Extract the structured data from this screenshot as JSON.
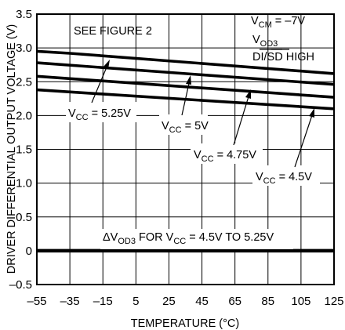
{
  "chart_data": {
    "type": "line",
    "xlabel": "TEMPERATURE (°C)",
    "ylabel": "DRIVER DIFFERENTIAL OUTPUT VOLTAGE (V)",
    "xlim": [
      -55,
      125
    ],
    "ylim": [
      -0.5,
      3.5
    ],
    "x_ticks": [
      "–55",
      "–35",
      "–15",
      "5",
      "25",
      "45",
      "65",
      "85",
      "105",
      "125"
    ],
    "y_ticks": [
      "–0.5",
      "0",
      "0.5",
      "1.0",
      "1.5",
      "2.0",
      "2.5",
      "3.0",
      "3.5"
    ],
    "grid": true,
    "series": [
      {
        "name": "VCC = 5.25V",
        "x": [
          -55,
          -35,
          125
        ],
        "y": [
          2.95,
          2.92,
          2.62
        ]
      },
      {
        "name": "VCC = 5V",
        "x": [
          -55,
          125
        ],
        "y": [
          2.78,
          2.46
        ]
      },
      {
        "name": "VCC = 4.75V",
        "x": [
          -55,
          125
        ],
        "y": [
          2.58,
          2.27
        ]
      },
      {
        "name": "VCC = 4.5V",
        "x": [
          -55,
          125
        ],
        "y": [
          2.38,
          2.1
        ]
      },
      {
        "name": "ΔVOD3 FOR VCC = 4.5V TO 5.25V",
        "x": [
          -55,
          125
        ],
        "y": [
          0,
          0
        ]
      }
    ],
    "annotations": {
      "see_figure": "SEE FIGURE 2",
      "vcm": {
        "main": "V",
        "sub": "CM",
        "rest": " = –7V"
      },
      "vod3": {
        "main": "V",
        "sub": "OD3"
      },
      "di_sd": {
        "main": "DI/",
        "over": "SD",
        "rest": " HIGH"
      },
      "label_525": {
        "main": "V",
        "sub": "CC",
        "rest": " = 5.25V"
      },
      "label_5": {
        "main": "V",
        "sub": "CC",
        "rest": " = 5V"
      },
      "label_475": {
        "main": "V",
        "sub": "CC",
        "rest": " = 4.75V"
      },
      "label_45": {
        "main": "V",
        "sub": "CC",
        "rest": " = 4.5V"
      },
      "delta": {
        "a": "ΔV",
        "sub1": "OD3",
        "b": " FOR V",
        "sub2": "CC",
        "c": " = 4.5V TO 5.25V"
      }
    }
  }
}
